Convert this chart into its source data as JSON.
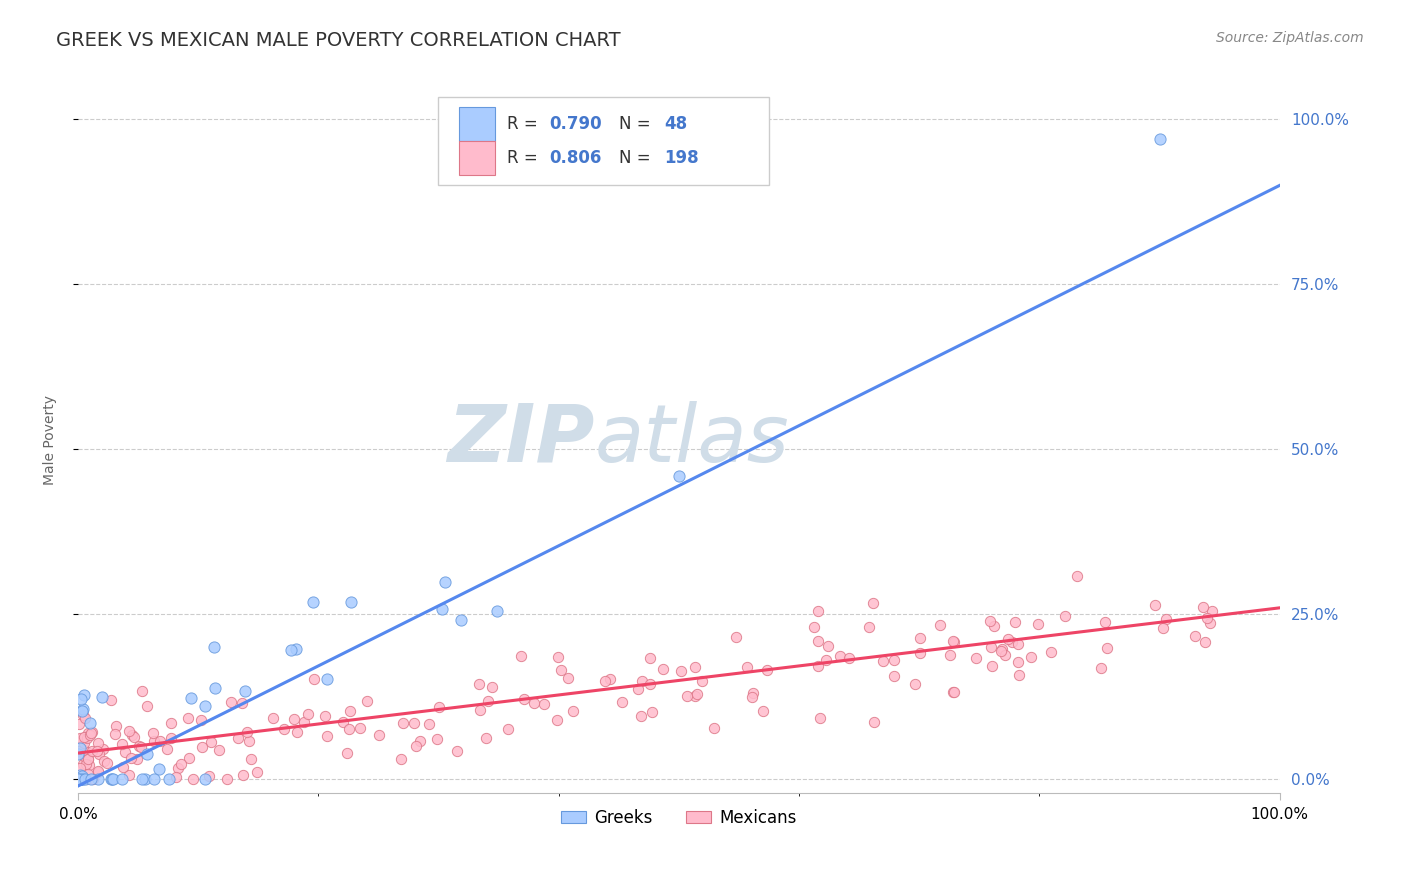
{
  "title": "GREEK VS MEXICAN MALE POVERTY CORRELATION CHART",
  "source": "Source: ZipAtlas.com",
  "ylabel": "Male Poverty",
  "xlabel": "",
  "xlim": [
    0,
    1.0
  ],
  "ylim": [
    -0.02,
    1.05
  ],
  "xtick_labels": [
    "0.0%",
    "100.0%"
  ],
  "ytick_labels": [
    "0.0%",
    "25.0%",
    "50.0%",
    "75.0%",
    "100.0%"
  ],
  "ytick_positions": [
    0.0,
    0.25,
    0.5,
    0.75,
    1.0
  ],
  "greek_line_color": "#5588ee",
  "greek_scatter_face": "#aaccff",
  "greek_scatter_edge": "#6699dd",
  "mexican_line_color": "#ee4466",
  "mexican_scatter_face": "#ffbbcc",
  "mexican_scatter_edge": "#dd7788",
  "greek_R": "0.790",
  "greek_N": "48",
  "mexican_R": "0.806",
  "mexican_N": "198",
  "watermark_text": "ZIPAtlas",
  "watermark_color": "#d0dde8",
  "background_color": "#ffffff",
  "title_fontsize": 14,
  "axis_label_fontsize": 10,
  "tick_fontsize": 11,
  "legend_fontsize": 12,
  "source_fontsize": 10,
  "right_tick_color": "#4477cc",
  "greek_trend": [
    0.0,
    -0.01,
    1.0,
    0.9
  ],
  "mexican_trend": [
    0.0,
    0.04,
    1.0,
    0.26
  ]
}
